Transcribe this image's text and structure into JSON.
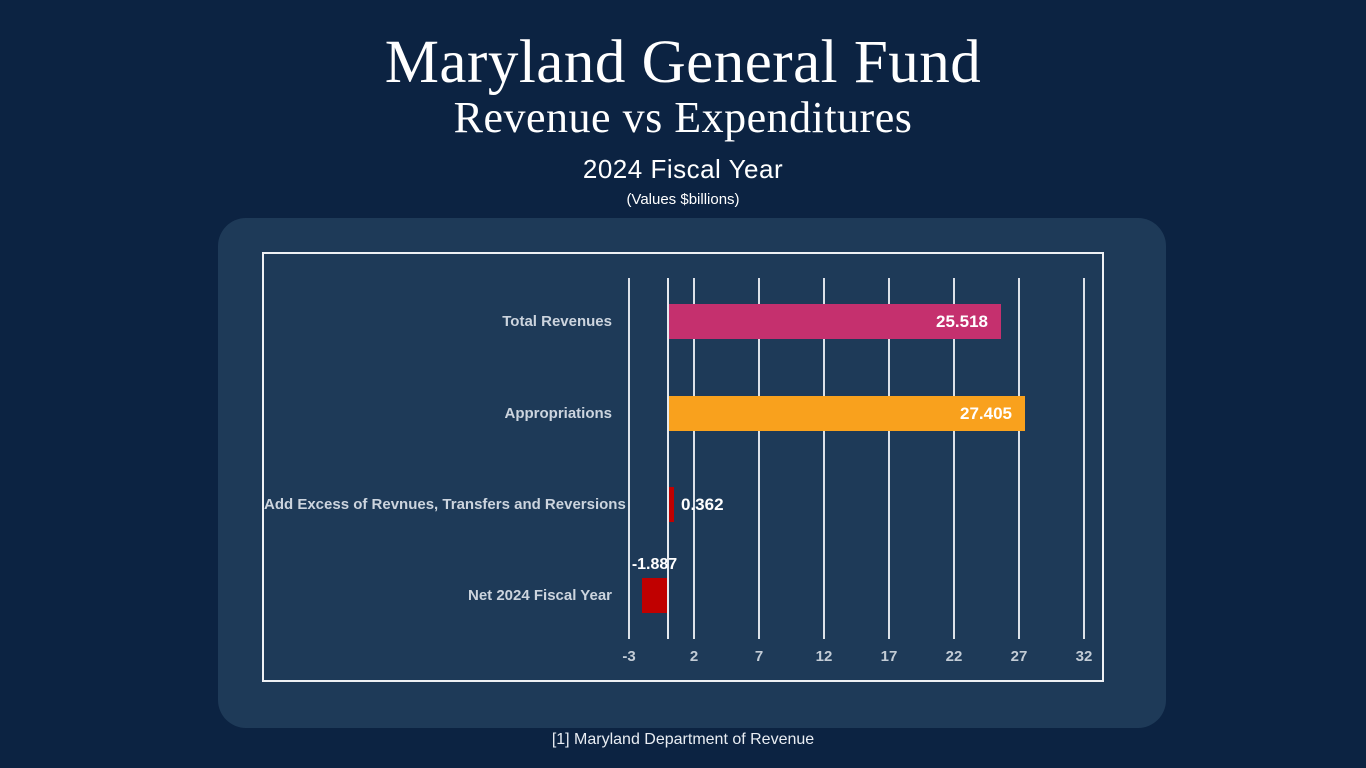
{
  "header": {
    "title": "Maryland General Fund",
    "subtitle": "Revenue vs Expenditures",
    "period": "2024 Fiscal Year",
    "units": "(Values $billions)"
  },
  "chart_data": {
    "type": "bar",
    "orientation": "horizontal",
    "title": "Maryland General Fund Revenue vs Expenditures",
    "subtitle": "2024 Fiscal Year",
    "units": "$billions",
    "categories": [
      "Total Revenues",
      "Appropriations",
      "Add Excess of Revnues, Transfers and Reversions",
      "Net 2024 Fiscal Year"
    ],
    "values": [
      25.518,
      27.405,
      0.362,
      -1.887
    ],
    "value_labels": [
      "25.518",
      "27.405",
      "0.362",
      "-1.887"
    ],
    "bar_colors": [
      "#c5306e",
      "#f9a11d",
      "#c00000",
      "#c00000"
    ],
    "value_label_position": [
      "inside",
      "inside",
      "right",
      "above"
    ],
    "x_ticks": [
      -3,
      2,
      7,
      12,
      17,
      22,
      27,
      32
    ],
    "axis_range": [
      -3,
      32
    ],
    "gridline_step": 5,
    "gridlines": true,
    "legend": "none"
  },
  "footer": {
    "source": "[1] Maryland Department of Revenue"
  },
  "colors": {
    "page_bg": "#0c2342",
    "panel_bg": "#1e3a58",
    "grid": "#dce1e8",
    "plot_border": "#eef0f4",
    "category_text": "#ccd4de",
    "tick_text": "#c3ccd6",
    "value_text": "#ffffff",
    "pink": "#c5306e",
    "orange": "#f9a11d",
    "red": "#c00000"
  }
}
